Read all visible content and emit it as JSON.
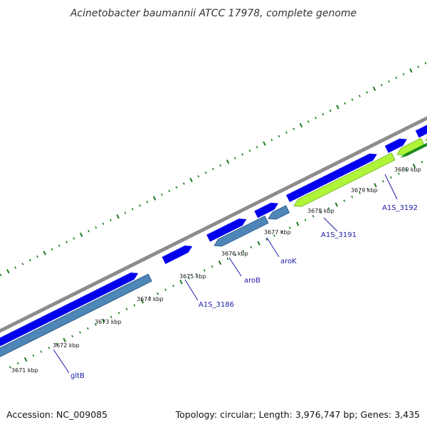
{
  "title": "Acinetobacter baumannii ATCC 17978, complete genome",
  "footer": {
    "accession": "Accession: NC_009085",
    "summary": "Topology: circular; Length: 3,976,747 bp; Genes: 3,435"
  },
  "colors": {
    "backbone": "#8c8c8c",
    "forward_cds": "#0000ee",
    "reverse_cds": "#4f86b8",
    "reverse_cds_dark": "#2d5f8c",
    "green_light": "#aef53a",
    "green_dark": "#1f8a1f",
    "ticks": "#1d7a1d",
    "gene_label": "#1a1aa8"
  },
  "ticks": [
    "3671 kbp",
    "3672 kbp",
    "3673 kbp",
    "3674 kbp",
    "3675 kbp",
    "3676 kbp",
    "3677 kbp",
    "3678 kbp",
    "3679 kbp",
    "3680 kbp"
  ],
  "gene_labels": [
    "gltB",
    "A1S_3186",
    "aroB",
    "aroK",
    "A1S_3191",
    "A1S_3192"
  ]
}
